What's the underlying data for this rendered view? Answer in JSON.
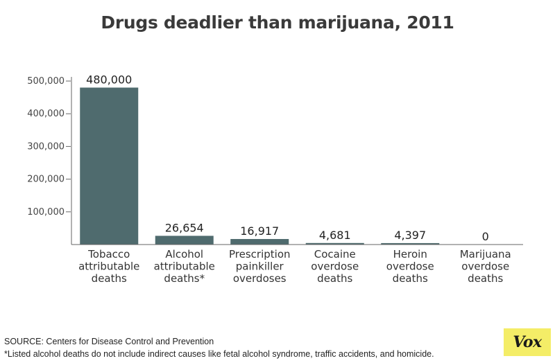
{
  "title": "Drugs deadlier than marijuana, 2011",
  "source": "SOURCE: Centers for Disease Control and Prevention",
  "note": "*Listed alcohol deaths do not include indirect causes like fetal alcohol syndrome, traffic accidents, and homicide.",
  "logo": "Vox",
  "chart_data": {
    "type": "bar",
    "title": "Drugs deadlier than marijuana, 2011",
    "xlabel": "",
    "ylabel": "",
    "ylim": [
      0,
      500000
    ],
    "yticks": [
      100000,
      200000,
      300000,
      400000,
      500000
    ],
    "ytick_labels": [
      "100,000",
      "200,000",
      "300,000",
      "400,000",
      "500,000"
    ],
    "grid": false,
    "bar_color": "#4f6b6e",
    "categories": [
      [
        "Tobacco",
        "attributable",
        "deaths"
      ],
      [
        "Alcohol",
        "attributable",
        "deaths*"
      ],
      [
        "Prescription",
        "painkiller",
        "overdoses"
      ],
      [
        "Cocaine",
        "overdose",
        "deaths"
      ],
      [
        "Heroin",
        "overdose",
        "deaths"
      ],
      [
        "Marijuana",
        "overdose",
        "deaths"
      ]
    ],
    "values": [
      480000,
      26654,
      16917,
      4681,
      4397,
      0
    ],
    "value_labels": [
      "480,000",
      "26,654",
      "16,917",
      "4,681",
      "4,397",
      "0"
    ]
  }
}
